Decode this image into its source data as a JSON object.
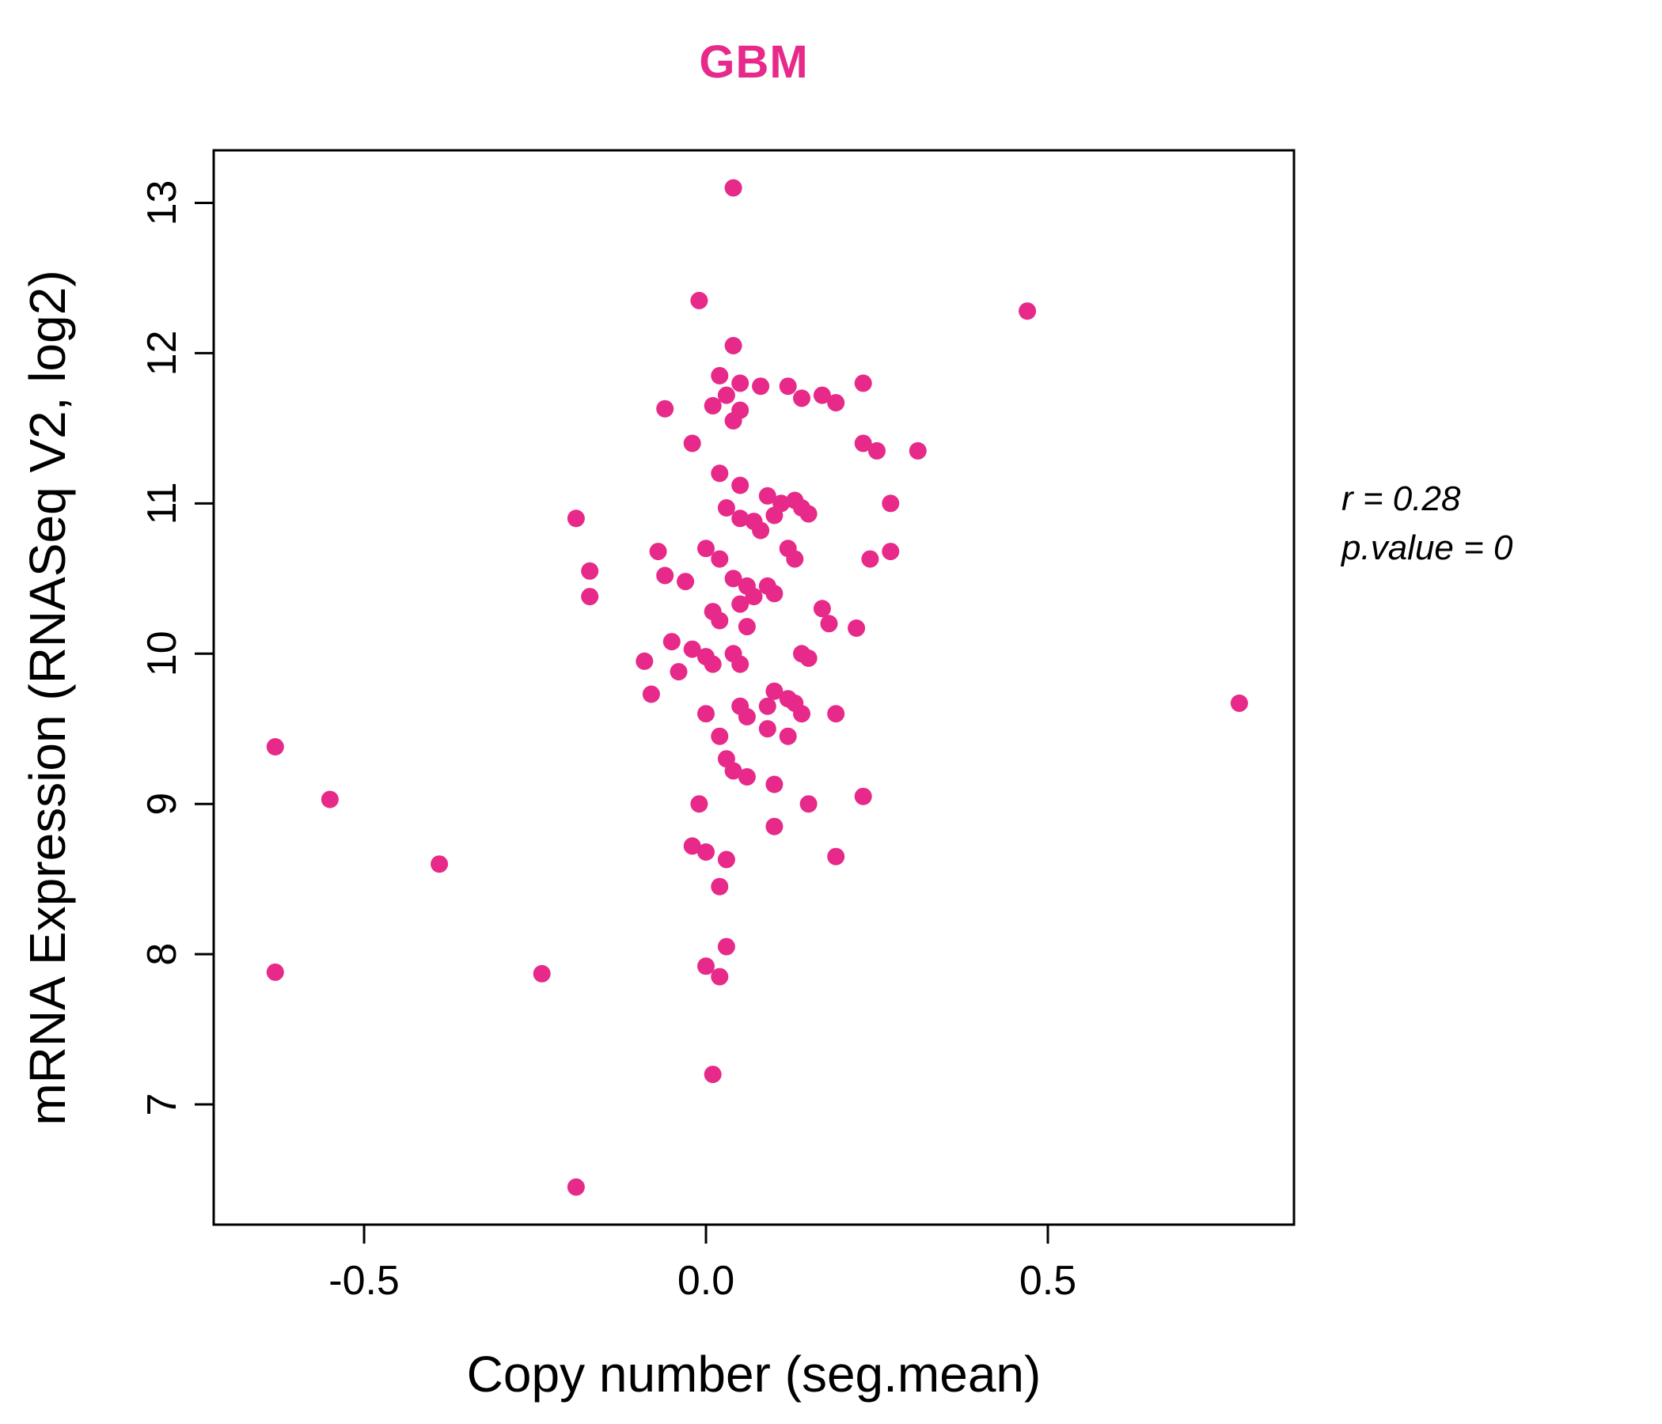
{
  "page": {
    "background": "#ffffff"
  },
  "chart_data": {
    "type": "scatter",
    "title": "GBM",
    "title_color": "#E7298A",
    "point_color": "#E7298A",
    "axis_color": "#000000",
    "xlabel": "Copy number (seg.mean)",
    "ylabel": "mRNA Expression (RNASeq V2, log2)",
    "xlim": [
      -0.72,
      0.86
    ],
    "ylim": [
      6.2,
      13.35
    ],
    "grid": false,
    "x_ticks": [
      -0.5,
      0.0,
      0.5
    ],
    "x_tick_labels": [
      "-0.5",
      "0.0",
      "0.5"
    ],
    "y_ticks": [
      7,
      8,
      9,
      10,
      11,
      12,
      13
    ],
    "y_tick_labels": [
      "7",
      "8",
      "9",
      "10",
      "11",
      "12",
      "13"
    ],
    "annotation": {
      "line1": "r = 0.28",
      "line2": "p.value = 0"
    },
    "points": [
      [
        0.04,
        13.1
      ],
      [
        -0.01,
        12.35
      ],
      [
        0.47,
        12.28
      ],
      [
        0.04,
        12.05
      ],
      [
        0.02,
        11.85
      ],
      [
        0.05,
        11.8
      ],
      [
        0.08,
        11.78
      ],
      [
        0.03,
        11.72
      ],
      [
        0.01,
        11.65
      ],
      [
        -0.06,
        11.63
      ],
      [
        0.05,
        11.62
      ],
      [
        0.12,
        11.78
      ],
      [
        0.23,
        11.8
      ],
      [
        0.14,
        11.7
      ],
      [
        0.17,
        11.72
      ],
      [
        0.19,
        11.67
      ],
      [
        0.04,
        11.55
      ],
      [
        -0.02,
        11.4
      ],
      [
        0.23,
        11.4
      ],
      [
        0.25,
        11.35
      ],
      [
        0.31,
        11.35
      ],
      [
        0.02,
        11.2
      ],
      [
        0.05,
        11.12
      ],
      [
        0.09,
        11.05
      ],
      [
        0.11,
        11.0
      ],
      [
        0.13,
        11.02
      ],
      [
        0.14,
        10.97
      ],
      [
        0.15,
        10.93
      ],
      [
        0.27,
        11.0
      ],
      [
        0.03,
        10.97
      ],
      [
        -0.19,
        10.9
      ],
      [
        0.05,
        10.9
      ],
      [
        0.07,
        10.88
      ],
      [
        0.08,
        10.82
      ],
      [
        0.1,
        10.92
      ],
      [
        0.0,
        10.7
      ],
      [
        0.02,
        10.63
      ],
      [
        0.12,
        10.7
      ],
      [
        0.13,
        10.63
      ],
      [
        0.24,
        10.63
      ],
      [
        0.27,
        10.68
      ],
      [
        -0.07,
        10.68
      ],
      [
        -0.17,
        10.55
      ],
      [
        -0.17,
        10.38
      ],
      [
        -0.06,
        10.52
      ],
      [
        -0.03,
        10.48
      ],
      [
        0.04,
        10.5
      ],
      [
        0.06,
        10.45
      ],
      [
        0.07,
        10.38
      ],
      [
        0.09,
        10.45
      ],
      [
        0.1,
        10.4
      ],
      [
        0.05,
        10.33
      ],
      [
        0.01,
        10.28
      ],
      [
        0.02,
        10.22
      ],
      [
        0.06,
        10.18
      ],
      [
        0.17,
        10.3
      ],
      [
        0.18,
        10.2
      ],
      [
        0.22,
        10.17
      ],
      [
        -0.05,
        10.08
      ],
      [
        -0.02,
        10.03
      ],
      [
        0.0,
        9.98
      ],
      [
        0.01,
        9.93
      ],
      [
        0.04,
        10.0
      ],
      [
        0.14,
        10.0
      ],
      [
        0.15,
        9.97
      ],
      [
        -0.09,
        9.95
      ],
      [
        -0.04,
        9.88
      ],
      [
        0.05,
        9.93
      ],
      [
        -0.08,
        9.73
      ],
      [
        0.1,
        9.75
      ],
      [
        0.12,
        9.7
      ],
      [
        0.0,
        9.6
      ],
      [
        0.05,
        9.65
      ],
      [
        0.06,
        9.58
      ],
      [
        0.09,
        9.65
      ],
      [
        0.13,
        9.67
      ],
      [
        0.14,
        9.6
      ],
      [
        0.19,
        9.6
      ],
      [
        0.78,
        9.67
      ],
      [
        0.02,
        9.45
      ],
      [
        0.09,
        9.5
      ],
      [
        0.12,
        9.45
      ],
      [
        -0.63,
        9.38
      ],
      [
        0.03,
        9.3
      ],
      [
        0.04,
        9.22
      ],
      [
        0.06,
        9.18
      ],
      [
        0.1,
        9.13
      ],
      [
        -0.55,
        9.03
      ],
      [
        -0.01,
        9.0
      ],
      [
        0.15,
        9.0
      ],
      [
        0.23,
        9.05
      ],
      [
        0.1,
        8.85
      ],
      [
        -0.02,
        8.72
      ],
      [
        0.0,
        8.68
      ],
      [
        0.03,
        8.63
      ],
      [
        0.19,
        8.65
      ],
      [
        -0.39,
        8.6
      ],
      [
        0.02,
        8.45
      ],
      [
        0.03,
        8.05
      ],
      [
        0.0,
        7.92
      ],
      [
        0.02,
        7.85
      ],
      [
        -0.63,
        7.88
      ],
      [
        -0.24,
        7.87
      ],
      [
        0.01,
        7.2
      ],
      [
        -0.19,
        6.45
      ]
    ]
  }
}
